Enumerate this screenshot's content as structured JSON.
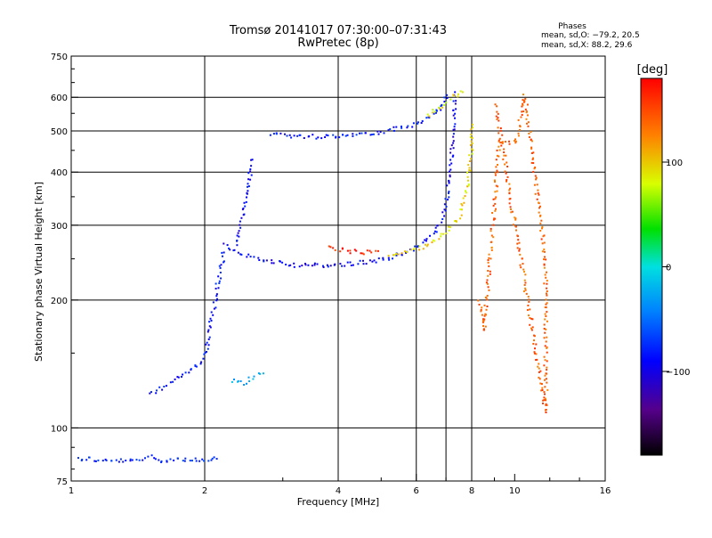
{
  "chart_data": {
    "type": "scatter",
    "title": "Tromsø 20141017 07:30:00–07:31:43",
    "subtitle": "RwPretec (8p)",
    "xlabel": "Frequency [MHz]",
    "ylabel": "Stationary phase Virtual Height [km]",
    "x_scale": "log",
    "y_scale": "log",
    "xlim": [
      1,
      16
    ],
    "ylim": [
      75,
      750
    ],
    "x_ticks": [
      1,
      2,
      4,
      6,
      8,
      10,
      16
    ],
    "x_tick_labels": [
      "1",
      "2",
      "4",
      "6",
      "8",
      "10",
      "16"
    ],
    "x_grid": [
      2,
      4,
      6,
      7,
      8
    ],
    "y_ticks": [
      75,
      100,
      200,
      300,
      400,
      500,
      600,
      750
    ],
    "y_tick_labels": [
      "75",
      "100",
      "200",
      "300",
      "400",
      "500",
      "600",
      "750"
    ],
    "y_grid": [
      100,
      200,
      300,
      400,
      500,
      600
    ],
    "grid": true,
    "phases": {
      "title": "Phases",
      "o_line": "mean, sd,O: −79.2, 20.5",
      "x_line": "mean, sd,X:  88.2, 29.6"
    },
    "colorbar": {
      "label": "[deg]",
      "range": [
        -180,
        180
      ],
      "ticks": [
        100,
        0,
        -100
      ],
      "tick_labels": [
        "100",
        "0",
        "−100"
      ]
    },
    "traces": [
      {
        "trace": "low-sporadic",
        "phase": -85,
        "points": [
          [
            1.03,
            85
          ],
          [
            1.1,
            85
          ],
          [
            1.15,
            84
          ],
          [
            1.4,
            84
          ],
          [
            1.5,
            86
          ],
          [
            1.6,
            84
          ],
          [
            1.7,
            85
          ],
          [
            2.05,
            84
          ],
          [
            2.12,
            85
          ]
        ]
      },
      {
        "trace": "low-F-rise",
        "phase": -95,
        "points": [
          [
            1.5,
            120
          ],
          [
            1.6,
            125
          ],
          [
            1.7,
            130
          ],
          [
            1.8,
            135
          ],
          [
            1.9,
            140
          ],
          [
            2.0,
            150
          ],
          [
            2.05,
            175
          ],
          [
            2.1,
            200
          ],
          [
            2.15,
            230
          ],
          [
            2.2,
            260
          ]
        ]
      },
      {
        "trace": "blob-130",
        "phase": -20,
        "points": [
          [
            2.3,
            130
          ],
          [
            2.45,
            128
          ],
          [
            2.55,
            132
          ],
          [
            2.7,
            135
          ]
        ]
      },
      {
        "trace": "F-lower-O",
        "phase": -100,
        "points": [
          [
            2.2,
            270
          ],
          [
            2.3,
            262
          ],
          [
            2.5,
            255
          ],
          [
            2.8,
            248
          ],
          [
            3.2,
            243
          ],
          [
            3.6,
            242
          ],
          [
            4.0,
            243
          ],
          [
            4.5,
            246
          ],
          [
            5.0,
            250
          ],
          [
            5.5,
            258
          ],
          [
            6.0,
            268
          ],
          [
            6.5,
            285
          ],
          [
            6.9,
            320
          ],
          [
            7.1,
            380
          ],
          [
            7.2,
            460
          ],
          [
            7.3,
            540
          ],
          [
            7.3,
            620
          ]
        ]
      },
      {
        "trace": "F-lower-X",
        "phase": 95,
        "points": [
          [
            5.2,
            255
          ],
          [
            5.8,
            262
          ],
          [
            6.4,
            272
          ],
          [
            7.0,
            290
          ],
          [
            7.5,
            320
          ],
          [
            7.8,
            380
          ],
          [
            7.95,
            450
          ],
          [
            8.0,
            520
          ]
        ]
      },
      {
        "trace": "F-upper-O",
        "phase": -90,
        "points": [
          [
            2.8,
            495
          ],
          [
            3.2,
            488
          ],
          [
            3.6,
            487
          ],
          [
            4.0,
            490
          ],
          [
            4.5,
            495
          ],
          [
            5.0,
            500
          ],
          [
            5.5,
            510
          ],
          [
            6.0,
            520
          ],
          [
            6.5,
            545
          ],
          [
            6.8,
            575
          ],
          [
            7.0,
            610
          ]
        ]
      },
      {
        "trace": "F-upper-X",
        "phase": 90,
        "points": [
          [
            6.3,
            545
          ],
          [
            6.8,
            570
          ],
          [
            7.2,
            600
          ],
          [
            7.6,
            620
          ]
        ]
      },
      {
        "trace": "red-band",
        "phase": 165,
        "points": [
          [
            3.8,
            268
          ],
          [
            4.1,
            263
          ],
          [
            4.5,
            260
          ],
          [
            4.9,
            262
          ]
        ]
      },
      {
        "trace": "cusp",
        "phase": -100,
        "points": [
          [
            2.35,
            270
          ],
          [
            2.4,
            300
          ],
          [
            2.45,
            340
          ],
          [
            2.5,
            380
          ],
          [
            2.55,
            430
          ]
        ]
      },
      {
        "trace": "sparse",
        "phase": 140,
        "points": [
          [
            8.3,
            200
          ],
          [
            8.5,
            170
          ],
          [
            9.2,
            480
          ],
          [
            10.0,
            470
          ],
          [
            10.5,
            610
          ],
          [
            11.7,
            245
          ],
          [
            11.7,
            160
          ],
          [
            11.7,
            110
          ],
          [
            9.0,
            580
          ]
        ]
      }
    ]
  }
}
